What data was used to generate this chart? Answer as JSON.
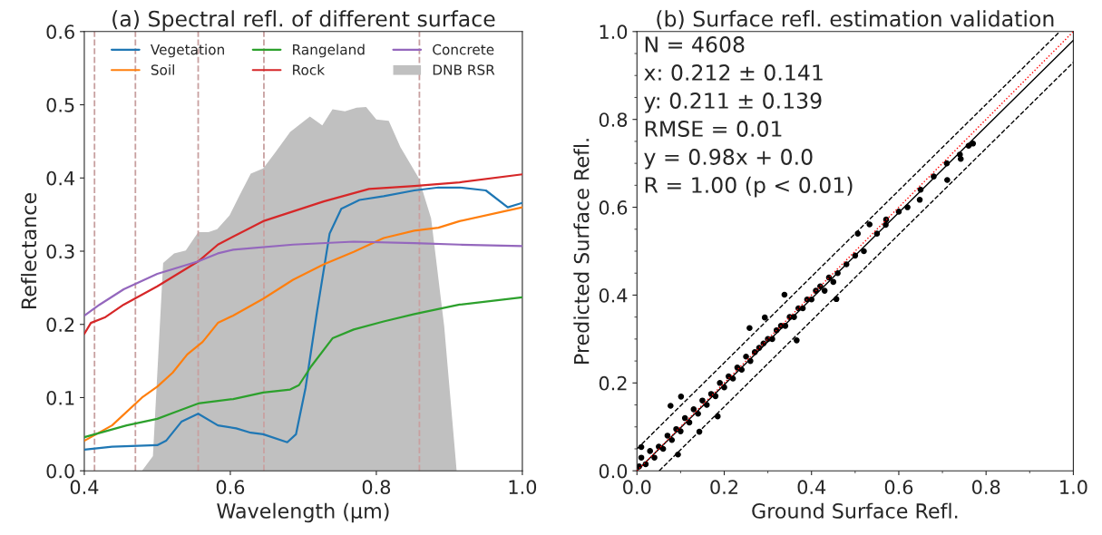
{
  "chart_data": [
    {
      "type": "line",
      "title": "(a) Spectral refl. of different surface",
      "xlabel": "Wavelength (μm)",
      "ylabel": "Reflectance",
      "xlim": [
        0.4,
        1.0
      ],
      "ylim": [
        0.0,
        0.6
      ],
      "xticks": [
        0.4,
        0.6,
        0.8,
        {
          "value": 1,
          "label": "1.0"
        }
      ],
      "yticks": [
        {
          "value": 0,
          "label": "0.0"
        },
        0.1,
        0.2,
        0.3,
        0.4,
        0.5,
        0.6
      ],
      "grid": false,
      "legend": "top",
      "marker": "none",
      "line_style": "solid",
      "series": [
        {
          "name": "Vegetation",
          "color": "#1f77b4",
          "x": [
            0.4,
            0.438,
            0.5,
            0.512,
            0.533,
            0.556,
            0.583,
            0.608,
            0.628,
            0.645,
            0.678,
            0.69,
            0.703,
            0.719,
            0.736,
            0.752,
            0.777,
            0.81,
            0.852,
            0.885,
            0.914,
            0.95,
            0.98,
            1.0
          ],
          "values": [
            0.029,
            0.033,
            0.035,
            0.041,
            0.067,
            0.078,
            0.062,
            0.058,
            0.052,
            0.05,
            0.039,
            0.05,
            0.113,
            0.219,
            0.324,
            0.358,
            0.37,
            0.375,
            0.383,
            0.387,
            0.387,
            0.383,
            0.36,
            0.366
          ]
        },
        {
          "name": "Soil",
          "color": "#ff7f0e",
          "x": [
            0.4,
            0.438,
            0.479,
            0.5,
            0.521,
            0.541,
            0.562,
            0.583,
            0.604,
            0.645,
            0.686,
            0.728,
            0.769,
            0.81,
            0.852,
            0.885,
            0.914,
            1.0
          ],
          "values": [
            0.041,
            0.062,
            0.1,
            0.115,
            0.134,
            0.159,
            0.176,
            0.202,
            0.212,
            0.235,
            0.261,
            0.282,
            0.299,
            0.318,
            0.328,
            0.332,
            0.341,
            0.36
          ]
        },
        {
          "name": "Rangeland",
          "color": "#2ca02c",
          "x": [
            0.4,
            0.458,
            0.5,
            0.521,
            0.556,
            0.604,
            0.645,
            0.682,
            0.694,
            0.711,
            0.74,
            0.769,
            0.81,
            0.852,
            0.914,
            1.0
          ],
          "values": [
            0.046,
            0.062,
            0.071,
            0.079,
            0.092,
            0.098,
            0.107,
            0.111,
            0.117,
            0.143,
            0.181,
            0.193,
            0.204,
            0.214,
            0.227,
            0.237
          ]
        },
        {
          "name": "Rock",
          "color": "#d62728",
          "x": [
            0.4,
            0.409,
            0.429,
            0.454,
            0.5,
            0.556,
            0.583,
            0.645,
            0.728,
            0.79,
            0.852,
            0.914,
            1.0
          ],
          "values": [
            0.187,
            0.202,
            0.21,
            0.227,
            0.252,
            0.286,
            0.309,
            0.341,
            0.368,
            0.385,
            0.389,
            0.394,
            0.405
          ]
        },
        {
          "name": "Concrete",
          "color": "#9467bd",
          "x": [
            0.4,
            0.421,
            0.454,
            0.5,
            0.556,
            0.583,
            0.604,
            0.686,
            0.769,
            0.852,
            0.914,
            1.0
          ],
          "values": [
            0.212,
            0.227,
            0.248,
            0.269,
            0.286,
            0.297,
            0.302,
            0.309,
            0.313,
            0.311,
            0.309,
            0.307
          ]
        },
        {
          "name": "DNB RSR",
          "type": "area",
          "color": "#c0c0c0",
          "x": [
            0.479,
            0.494,
            0.508,
            0.523,
            0.539,
            0.556,
            0.57,
            0.582,
            0.599,
            0.612,
            0.628,
            0.645,
            0.661,
            0.682,
            0.709,
            0.726,
            0.74,
            0.757,
            0.773,
            0.786,
            0.8,
            0.817,
            0.833,
            0.858,
            0.875,
            0.893,
            0.91
          ],
          "values": [
            0.0,
            0.02,
            0.284,
            0.297,
            0.301,
            0.326,
            0.326,
            0.33,
            0.349,
            0.375,
            0.406,
            0.413,
            0.434,
            0.463,
            0.484,
            0.472,
            0.494,
            0.491,
            0.496,
            0.497,
            0.48,
            0.478,
            0.442,
            0.4,
            0.345,
            0.197,
            0.0
          ]
        }
      ],
      "ref_lines": [
        {
          "axis": "x",
          "value": 0.414,
          "color": "#c8a0a0",
          "line_style": "dashed"
        },
        {
          "axis": "x",
          "value": 0.47,
          "color": "#c8a0a0",
          "line_style": "dashed"
        },
        {
          "axis": "x",
          "value": 0.556,
          "color": "#c8a0a0",
          "line_style": "dashed"
        },
        {
          "axis": "x",
          "value": 0.646,
          "color": "#c8a0a0",
          "line_style": "dashed"
        },
        {
          "axis": "x",
          "value": 0.859,
          "color": "#c8a0a0",
          "line_style": "dashed"
        }
      ]
    },
    {
      "type": "scatter",
      "title": "(b) Surface refl. estimation validation",
      "xlabel": "Ground Surface Refl.",
      "ylabel": "Predicted Surface Refl.",
      "xlim": [
        0.0,
        1.0
      ],
      "ylim": [
        0.0,
        1.0
      ],
      "xticks": [
        {
          "value": 0,
          "label": "0.0"
        },
        {
          "value": 0.1,
          "label": null
        },
        0.2,
        {
          "value": 0.3,
          "label": null
        },
        0.4,
        {
          "value": 0.5,
          "label": null
        },
        0.6,
        {
          "value": 0.7,
          "label": null
        },
        0.8,
        {
          "value": 0.9,
          "label": null
        },
        {
          "value": 1,
          "label": "1.0"
        }
      ],
      "yticks": [
        {
          "value": 0,
          "label": "0.0"
        },
        {
          "value": 0.05,
          "label": null
        },
        {
          "value": 0.1,
          "label": null
        },
        {
          "value": 0.15,
          "label": null
        },
        0.2,
        {
          "value": 0.25,
          "label": null
        },
        {
          "value": 0.3,
          "label": null
        },
        {
          "value": 0.35,
          "label": null
        },
        0.4,
        {
          "value": 0.45,
          "label": null
        },
        {
          "value": 0.5,
          "label": null
        },
        {
          "value": 0.55,
          "label": null
        },
        0.6,
        {
          "value": 0.65,
          "label": null
        },
        {
          "value": 0.7,
          "label": null
        },
        {
          "value": 0.75,
          "label": null
        },
        0.8,
        {
          "value": 0.85,
          "label": null
        },
        {
          "value": 0.9,
          "label": null
        },
        {
          "value": 0.95,
          "label": null
        },
        {
          "value": 1,
          "label": "1.0"
        }
      ],
      "grid": false,
      "legend": false,
      "annotations": [
        "N = 4608",
        "x: 0.212 ± 0.141",
        "y: 0.211 ± 0.139",
        "RMSE = 0.01",
        "y = 0.98x + 0.0",
        "R = 1.00 (p < 0.01)"
      ],
      "series": [
        {
          "type": "scatter",
          "color": "#000000",
          "marker": "circle",
          "x": [
            0.005,
            0.01,
            0.02,
            0.03,
            0.04,
            0.05,
            0.06,
            0.07,
            0.08,
            0.09,
            0.1,
            0.11,
            0.12,
            0.13,
            0.14,
            0.15,
            0.16,
            0.17,
            0.18,
            0.19,
            0.2,
            0.21,
            0.22,
            0.23,
            0.24,
            0.25,
            0.26,
            0.27,
            0.28,
            0.29,
            0.3,
            0.31,
            0.32,
            0.33,
            0.34,
            0.35,
            0.36,
            0.37,
            0.38,
            0.39,
            0.4,
            0.41,
            0.42,
            0.43,
            0.44,
            0.45,
            0.46,
            0.48,
            0.5,
            0.52,
            0.55,
            0.57,
            0.6,
            0.62,
            0.65,
            0.68,
            0.71,
            0.74,
            0.76,
            0.77,
            0.077,
            0.101,
            0.258,
            0.293,
            0.338,
            0.366,
            0.457,
            0.506,
            0.533,
            0.571,
            0.648,
            0.711,
            0.742,
            0.01,
            0.094,
            0.143,
            0.185
          ],
          "values": [
            0.01,
            0.03,
            0.015,
            0.045,
            0.03,
            0.055,
            0.05,
            0.08,
            0.07,
            0.095,
            0.09,
            0.12,
            0.11,
            0.14,
            0.13,
            0.16,
            0.15,
            0.175,
            0.17,
            0.2,
            0.19,
            0.215,
            0.21,
            0.235,
            0.23,
            0.26,
            0.25,
            0.27,
            0.28,
            0.29,
            0.3,
            0.3,
            0.32,
            0.33,
            0.33,
            0.35,
            0.35,
            0.37,
            0.37,
            0.39,
            0.39,
            0.41,
            0.42,
            0.41,
            0.44,
            0.43,
            0.45,
            0.47,
            0.49,
            0.5,
            0.54,
            0.56,
            0.59,
            0.6,
            0.64,
            0.67,
            0.7,
            0.72,
            0.74,
            0.745,
            0.148,
            0.169,
            0.325,
            0.349,
            0.401,
            0.297,
            0.391,
            0.54,
            0.561,
            0.572,
            0.617,
            0.662,
            0.71,
            0.054,
            0.037,
            0.089,
            0.124
          ]
        },
        {
          "type": "line",
          "color": "#000000",
          "line_style": "solid",
          "marker": "none",
          "x": [
            0.0,
            1.0
          ],
          "values": [
            0.0,
            0.98
          ]
        },
        {
          "type": "line",
          "color": "#000000",
          "line_style": "dashed",
          "marker": "none",
          "x": [
            0.0,
            0.969
          ],
          "values": [
            0.05,
            1.0
          ]
        },
        {
          "type": "line",
          "color": "#000000",
          "line_style": "dashed",
          "marker": "none",
          "x": [
            0.051,
            1.0
          ],
          "values": [
            0.0,
            0.93
          ]
        },
        {
          "type": "line",
          "color": "#ff0000",
          "line_style": "dotted",
          "marker": "none",
          "x": [
            0.0,
            1.0
          ],
          "values": [
            0.0,
            1.0
          ]
        }
      ]
    }
  ]
}
